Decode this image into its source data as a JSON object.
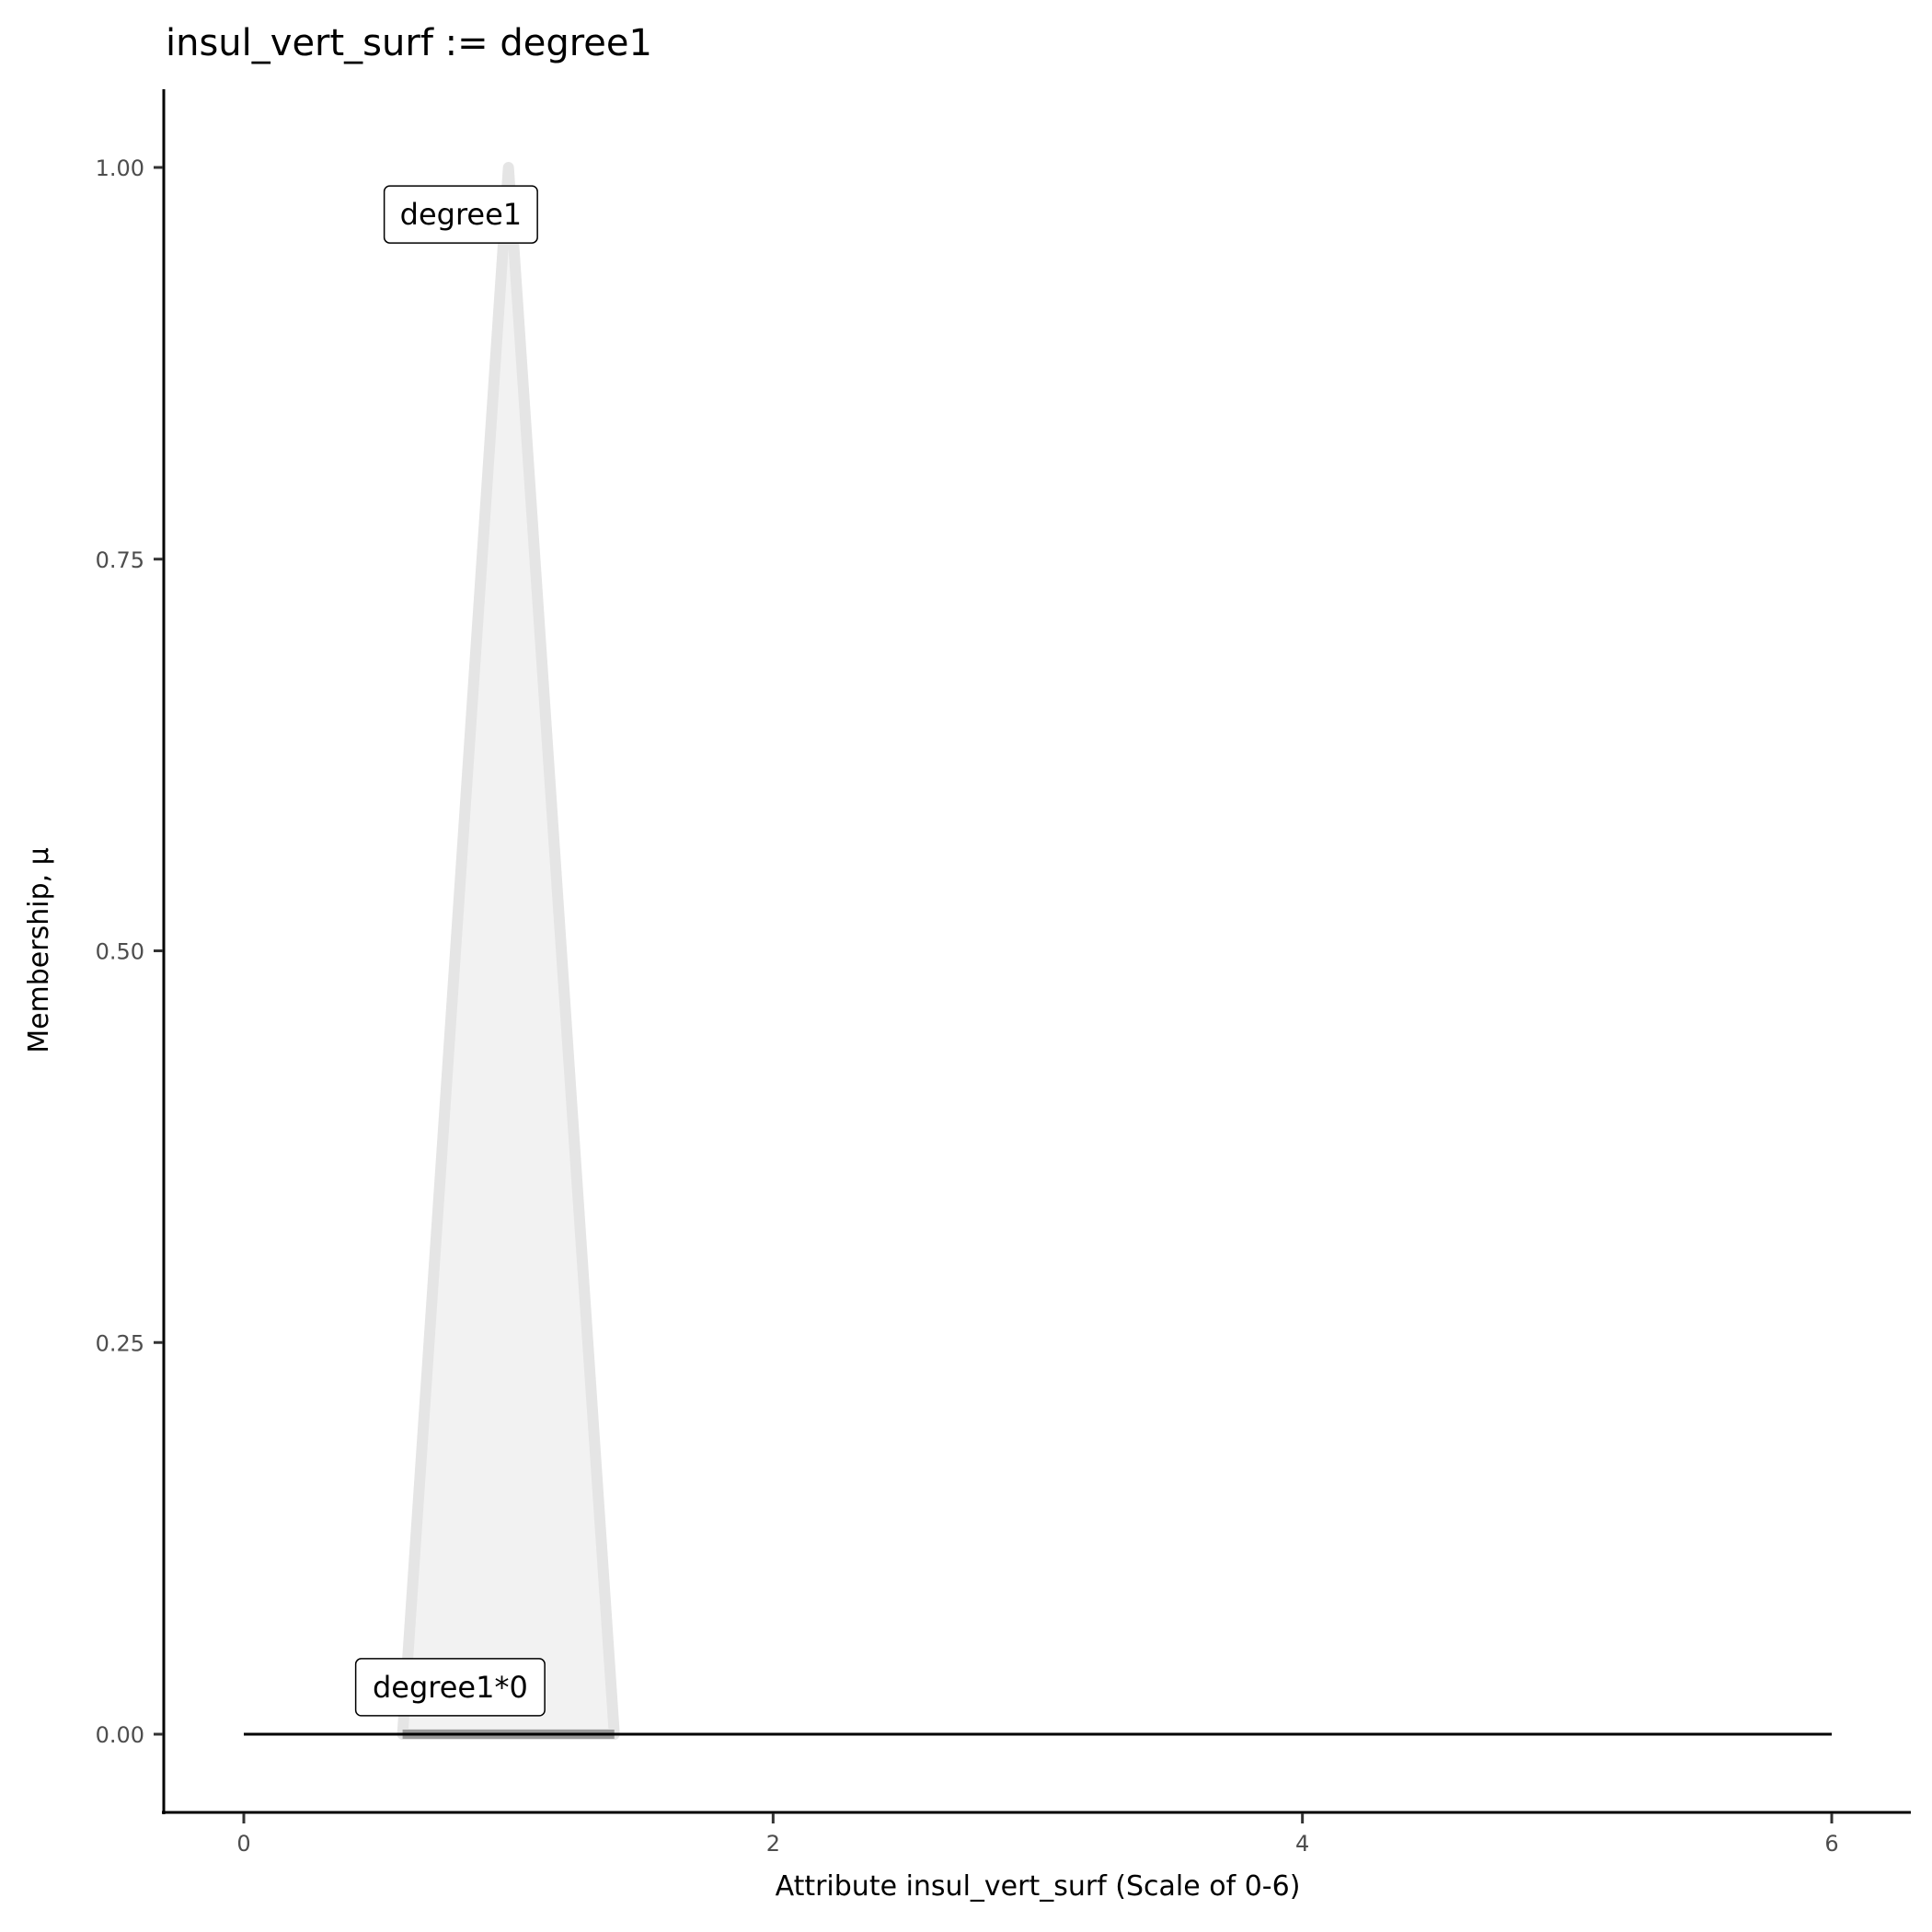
{
  "chart_data": {
    "type": "area",
    "title": "insul_vert_surf := degree1",
    "xlabel": "Attribute insul_vert_surf (Scale of 0-6)",
    "ylabel": "Membership, μ",
    "xlim": [
      -0.3,
      6.3
    ],
    "ylim": [
      -0.05,
      1.05
    ],
    "x_ticks": [
      "0",
      "2",
      "4",
      "6"
    ],
    "y_ticks": [
      "0.00",
      "0.25",
      "0.50",
      "0.75",
      "1.00"
    ],
    "grid": false,
    "series": [
      {
        "name": "degree1",
        "x": [
          0.6,
          1.0,
          1.4
        ],
        "y": [
          0,
          1,
          0
        ],
        "fill": "#f2f2f2",
        "stroke": "#e5e5e5"
      },
      {
        "name": "degree1*0",
        "x": [
          0.6,
          1.0,
          1.4
        ],
        "y": [
          0,
          0,
          0
        ],
        "stroke": "#999999"
      },
      {
        "x": [
          0,
          6
        ],
        "y": [
          0,
          0
        ],
        "stroke": "#000000"
      }
    ],
    "annotations": [
      {
        "text": "degree1",
        "x": 0.82,
        "y": 0.97
      },
      {
        "text": "degree1*0",
        "x": 0.78,
        "y": 0.03
      }
    ]
  }
}
